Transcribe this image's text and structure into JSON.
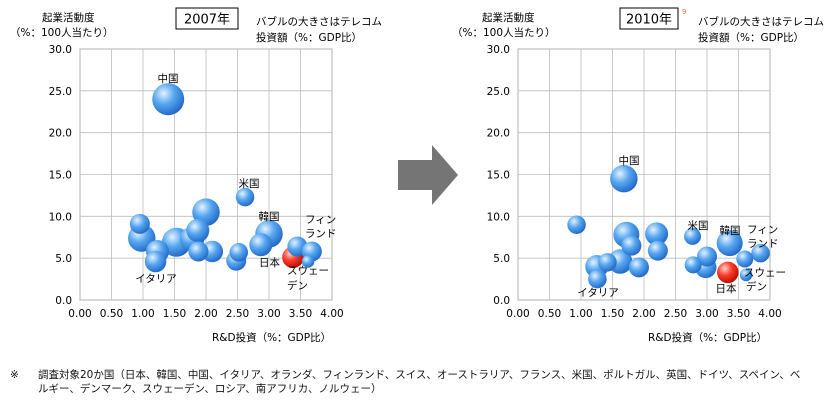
{
  "charts": [
    {
      "year_label": "2007年",
      "ylabel": [
        "起業活動度",
        "（%：100人当たり）"
      ],
      "bubble_note": [
        "バブルの大きさはテレコム",
        "投資額（%：GDP比）"
      ],
      "xlabel": "R&D投資（%：GDP比）",
      "x_ticks": [
        "0.00",
        "0.50",
        "1.00",
        "1.50",
        "2.00",
        "2.50",
        "3.00",
        "3.50",
        "4.00"
      ],
      "y_ticks": [
        "0.0",
        "5.0",
        "10.0",
        "15.0",
        "20.0",
        "25.0",
        "30.0"
      ],
      "labels": {
        "china": "中国",
        "us": "米国",
        "korea": "韓国",
        "finland": [
          "フィン",
          "ランド"
        ],
        "italy": "イタリア",
        "japan": "日本",
        "sweden": [
          "スウェー",
          "デン"
        ]
      }
    },
    {
      "year_label": "2010年",
      "ylabel": [
        "起業活動度",
        "（%：100人当たり）"
      ],
      "bubble_note": [
        "バブルの大きさはテレコム",
        "投資額（%：GDP比）"
      ],
      "xlabel": "R&D投資（%：GDP比）",
      "x_ticks": [
        "0.00",
        "0.50",
        "1.00",
        "1.50",
        "2.00",
        "2.50",
        "3.00",
        "3.50",
        "4.00"
      ],
      "y_ticks": [
        "0.0",
        "5.0",
        "10.0",
        "15.0",
        "20.0",
        "25.0",
        "30.0"
      ],
      "labels": {
        "china": "中国",
        "us": "米国",
        "korea": "韓国",
        "finland": [
          "フィン",
          "ランド"
        ],
        "italy": "イタリア",
        "japan": "日本",
        "sweden": [
          "スウェー",
          "デン"
        ]
      }
    }
  ],
  "chart_data": [
    {
      "type": "scatter",
      "title": "2007年",
      "xlabel": "R&D投資（%：GDP比）",
      "ylabel": "起業活動度（%：100人当たり）",
      "xlim": [
        0,
        4
      ],
      "ylim": [
        0,
        30
      ],
      "grid": true,
      "size_meaning": "バブルの大きさはテレコム投資額（%：GDP比）",
      "points": [
        {
          "x": 1.4,
          "y": 24.0,
          "size": 1.6,
          "name": "中国"
        },
        {
          "x": 2.62,
          "y": 12.3,
          "size": 0.7,
          "name": "米国"
        },
        {
          "x": 0.95,
          "y": 9.1,
          "size": 0.8
        },
        {
          "x": 0.98,
          "y": 7.4,
          "size": 1.3
        },
        {
          "x": 1.2,
          "y": 4.6,
          "size": 0.9,
          "name": "イタリア"
        },
        {
          "x": 1.23,
          "y": 5.8,
          "size": 1.0
        },
        {
          "x": 1.53,
          "y": 6.9,
          "size": 1.4
        },
        {
          "x": 1.78,
          "y": 7.3,
          "size": 1.1
        },
        {
          "x": 1.87,
          "y": 8.3,
          "size": 1.0
        },
        {
          "x": 1.88,
          "y": 5.8,
          "size": 0.8
        },
        {
          "x": 2.0,
          "y": 10.5,
          "size": 1.3
        },
        {
          "x": 2.1,
          "y": 5.8,
          "size": 0.9
        },
        {
          "x": 2.48,
          "y": 4.7,
          "size": 0.8
        },
        {
          "x": 2.52,
          "y": 5.7,
          "size": 0.7
        },
        {
          "x": 2.87,
          "y": 6.6,
          "size": 1.0
        },
        {
          "x": 3.0,
          "y": 7.9,
          "size": 1.3,
          "name": "韓国"
        },
        {
          "x": 3.45,
          "y": 6.4,
          "size": 0.8,
          "name": "フィンランド"
        },
        {
          "x": 3.68,
          "y": 5.8,
          "size": 0.8
        },
        {
          "x": 3.38,
          "y": 5.1,
          "size": 0.9,
          "name": "日本",
          "highlight": true
        },
        {
          "x": 3.62,
          "y": 4.6,
          "size": 0.3,
          "name": "スウェーデン"
        }
      ]
    },
    {
      "type": "scatter",
      "title": "2010年",
      "xlabel": "R&D投資（%：GDP比）",
      "ylabel": "起業活動度（%：100人当たり）",
      "xlim": [
        0,
        4
      ],
      "ylim": [
        0,
        30
      ],
      "grid": true,
      "size_meaning": "バブルの大きさはテレコム投資額（%：GDP比）",
      "points": [
        {
          "x": 1.68,
          "y": 14.5,
          "size": 1.3,
          "name": "中国"
        },
        {
          "x": 0.93,
          "y": 9.0,
          "size": 0.7
        },
        {
          "x": 1.25,
          "y": 4.0,
          "size": 1.0
        },
        {
          "x": 1.26,
          "y": 2.5,
          "size": 0.7,
          "name": "イタリア"
        },
        {
          "x": 1.42,
          "y": 4.5,
          "size": 0.7
        },
        {
          "x": 1.62,
          "y": 4.6,
          "size": 1.1
        },
        {
          "x": 1.72,
          "y": 7.8,
          "size": 1.2
        },
        {
          "x": 1.8,
          "y": 6.5,
          "size": 0.8
        },
        {
          "x": 1.92,
          "y": 3.9,
          "size": 0.8
        },
        {
          "x": 2.2,
          "y": 7.9,
          "size": 1.0
        },
        {
          "x": 2.22,
          "y": 5.9,
          "size": 0.8
        },
        {
          "x": 2.77,
          "y": 7.6,
          "size": 0.6,
          "name": "米国"
        },
        {
          "x": 2.78,
          "y": 4.2,
          "size": 0.6
        },
        {
          "x": 2.98,
          "y": 3.9,
          "size": 0.9
        },
        {
          "x": 3.0,
          "y": 5.2,
          "size": 0.8
        },
        {
          "x": 3.36,
          "y": 6.8,
          "size": 1.2,
          "name": "韓国"
        },
        {
          "x": 3.6,
          "y": 4.9,
          "size": 0.6
        },
        {
          "x": 3.85,
          "y": 5.6,
          "size": 0.7,
          "name": "フィンランド"
        },
        {
          "x": 3.33,
          "y": 3.3,
          "size": 0.9,
          "name": "日本",
          "highlight": true
        },
        {
          "x": 3.62,
          "y": 3.0,
          "size": 0.3,
          "name": "スウェーデン"
        }
      ]
    }
  ],
  "colors": {
    "bubble_light": "#e3f2ff",
    "bubble_mid": "#57a6f0",
    "bubble_dark": "#1c62c2",
    "japan_light": "#ffd0c8",
    "japan_mid": "#ff3a2a",
    "japan_dark": "#a80a00",
    "arrow": "#757575",
    "grid": "#bdbdbd",
    "plot_border": "#8a8a8a",
    "stray_mark": "#e07060"
  },
  "stray_mark": "9",
  "footnote": {
    "mark": "※",
    "text": "調査対象20か国（日本、韓国、中国、イタリア、オランダ、フィンランド、スイス、オーストラリア、フランス、米国、ポルトガル、英国、ドイツ、スペイン、ベルギー、デンマーク、スウェーデン、ロシア、南アフリカ、ノルウェー）"
  }
}
